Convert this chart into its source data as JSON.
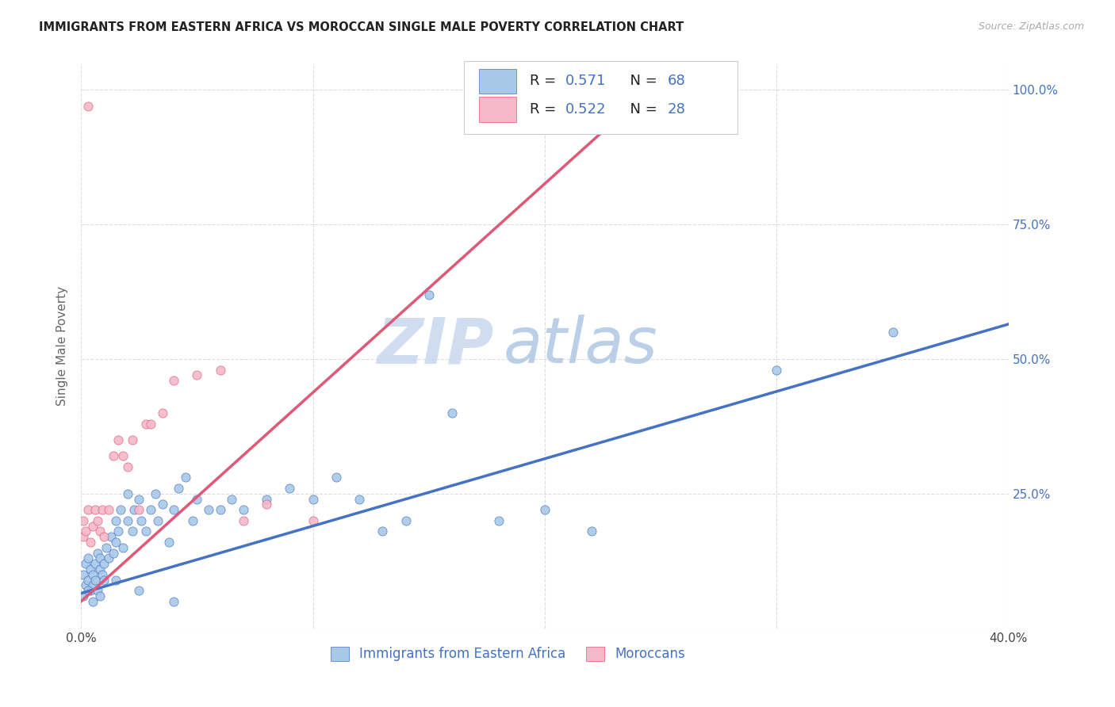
{
  "title": "IMMIGRANTS FROM EASTERN AFRICA VS MOROCCAN SINGLE MALE POVERTY CORRELATION CHART",
  "source": "Source: ZipAtlas.com",
  "ylabel": "Single Male Poverty",
  "xlim": [
    0.0,
    0.4
  ],
  "ylim": [
    0.0,
    1.05
  ],
  "xticks": [
    0.0,
    0.1,
    0.2,
    0.3,
    0.4
  ],
  "yticks": [
    0.0,
    0.25,
    0.5,
    0.75,
    1.0
  ],
  "blue_color": "#a8c8e8",
  "pink_color": "#f4b8c8",
  "blue_line_color": "#4472c4",
  "pink_line_color": "#e05878",
  "legend_label_blue": "Immigrants from Eastern Africa",
  "legend_label_pink": "Moroccans",
  "watermark_zip": "ZIP",
  "watermark_atlas": "atlas",
  "title_color": "#222222",
  "axis_label_color": "#666666",
  "tick_color_right": "#4472c4",
  "grid_color": "#dddddd",
  "blue_scatter_x": [
    0.001,
    0.002,
    0.002,
    0.003,
    0.003,
    0.004,
    0.004,
    0.005,
    0.005,
    0.006,
    0.006,
    0.007,
    0.007,
    0.008,
    0.008,
    0.009,
    0.01,
    0.01,
    0.011,
    0.012,
    0.013,
    0.014,
    0.015,
    0.015,
    0.016,
    0.017,
    0.018,
    0.02,
    0.02,
    0.022,
    0.023,
    0.025,
    0.026,
    0.028,
    0.03,
    0.032,
    0.033,
    0.035,
    0.038,
    0.04,
    0.042,
    0.045,
    0.048,
    0.05,
    0.055,
    0.06,
    0.065,
    0.07,
    0.08,
    0.09,
    0.1,
    0.11,
    0.12,
    0.13,
    0.14,
    0.15,
    0.16,
    0.18,
    0.2,
    0.22,
    0.001,
    0.003,
    0.005,
    0.008,
    0.015,
    0.025,
    0.04,
    0.3,
    0.35
  ],
  "blue_scatter_y": [
    0.1,
    0.08,
    0.12,
    0.09,
    0.13,
    0.07,
    0.11,
    0.1,
    0.08,
    0.12,
    0.09,
    0.14,
    0.07,
    0.11,
    0.13,
    0.1,
    0.12,
    0.09,
    0.15,
    0.13,
    0.17,
    0.14,
    0.16,
    0.2,
    0.18,
    0.22,
    0.15,
    0.2,
    0.25,
    0.18,
    0.22,
    0.24,
    0.2,
    0.18,
    0.22,
    0.25,
    0.2,
    0.23,
    0.16,
    0.22,
    0.26,
    0.28,
    0.2,
    0.24,
    0.22,
    0.22,
    0.24,
    0.22,
    0.24,
    0.26,
    0.24,
    0.28,
    0.24,
    0.18,
    0.2,
    0.62,
    0.4,
    0.2,
    0.22,
    0.18,
    0.06,
    0.07,
    0.05,
    0.06,
    0.09,
    0.07,
    0.05,
    0.48,
    0.55
  ],
  "pink_scatter_x": [
    0.001,
    0.001,
    0.002,
    0.003,
    0.004,
    0.005,
    0.006,
    0.007,
    0.008,
    0.009,
    0.01,
    0.012,
    0.014,
    0.016,
    0.018,
    0.02,
    0.022,
    0.025,
    0.028,
    0.03,
    0.035,
    0.04,
    0.05,
    0.06,
    0.07,
    0.08,
    0.1,
    0.003
  ],
  "pink_scatter_y": [
    0.17,
    0.2,
    0.18,
    0.22,
    0.16,
    0.19,
    0.22,
    0.2,
    0.18,
    0.22,
    0.17,
    0.22,
    0.32,
    0.35,
    0.32,
    0.3,
    0.35,
    0.22,
    0.38,
    0.38,
    0.4,
    0.46,
    0.47,
    0.48,
    0.2,
    0.23,
    0.2,
    0.97
  ],
  "blue_trend_x": [
    0.0,
    0.4
  ],
  "blue_trend_y": [
    0.065,
    0.565
  ],
  "pink_trend_x": [
    0.0,
    0.25
  ],
  "pink_trend_y": [
    0.05,
    1.02
  ]
}
